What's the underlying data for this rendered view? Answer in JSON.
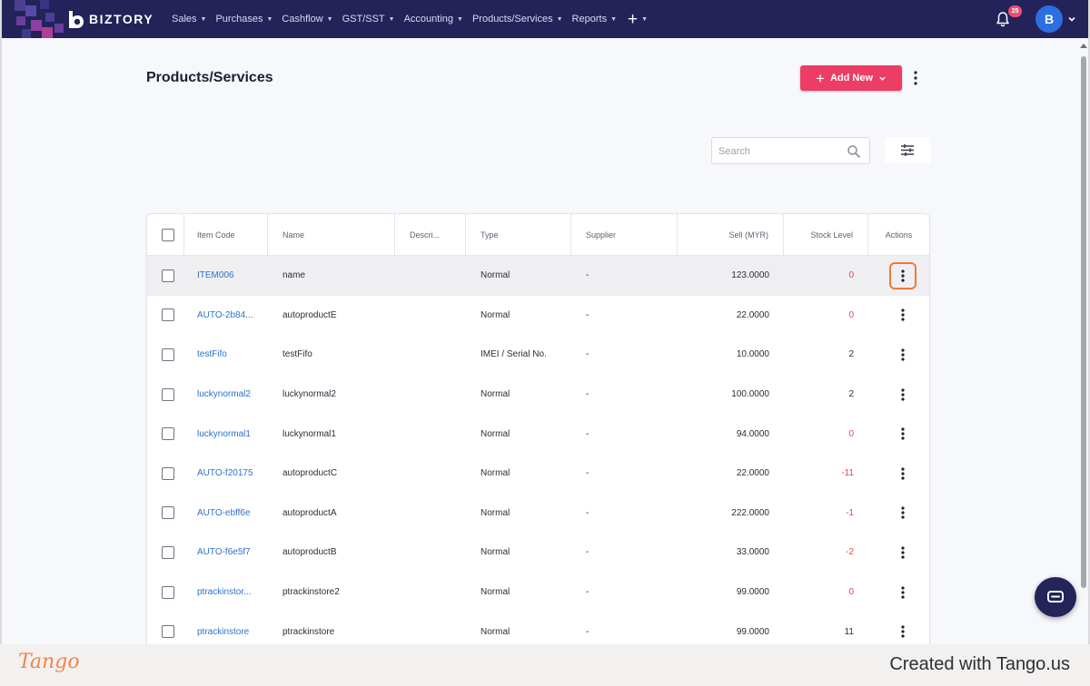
{
  "nav": {
    "brand": "BIZTORY",
    "menu": [
      {
        "label": "Sales"
      },
      {
        "label": "Purchases"
      },
      {
        "label": "Cashflow"
      },
      {
        "label": "GST/SST"
      },
      {
        "label": "Accounting"
      },
      {
        "label": "Products/Services"
      },
      {
        "label": "Reports"
      }
    ],
    "plus_symbol": "+",
    "notification_count": "25",
    "avatar_initial": "B"
  },
  "page": {
    "title": "Products/Services",
    "add_new_label": "Add New"
  },
  "search": {
    "placeholder": "Search"
  },
  "table": {
    "columns": {
      "item_code": "Item Code",
      "name": "Name",
      "description": "Descri...",
      "type": "Type",
      "supplier": "Supplier",
      "sell": "Sell (MYR)",
      "stock": "Stock Level",
      "actions": "Actions"
    },
    "rows": [
      {
        "code": "ITEM006",
        "name": "name",
        "type": "Normal",
        "supplier": "-",
        "sell": "123.0000",
        "stock": "0",
        "stock_negative_or_zero": true
      },
      {
        "code": "AUTO-2b84...",
        "name": "autoproductE",
        "type": "Normal",
        "supplier": "-",
        "sell": "22.0000",
        "stock": "0",
        "stock_negative_or_zero": true
      },
      {
        "code": "testFifo",
        "name": "testFifo",
        "type": "IMEI / Serial No.",
        "supplier": "-",
        "sell": "10.0000",
        "stock": "2",
        "stock_negative_or_zero": false
      },
      {
        "code": "luckynormal2",
        "name": "luckynormal2",
        "type": "Normal",
        "supplier": "-",
        "sell": "100.0000",
        "stock": "2",
        "stock_negative_or_zero": false
      },
      {
        "code": "luckynormal1",
        "name": "luckynormal1",
        "type": "Normal",
        "supplier": "-",
        "sell": "94.0000",
        "stock": "0",
        "stock_negative_or_zero": true
      },
      {
        "code": "AUTO-f20175",
        "name": "autoproductC",
        "type": "Normal",
        "supplier": "-",
        "sell": "22.0000",
        "stock": "-11",
        "stock_negative_or_zero": true
      },
      {
        "code": "AUTO-ebff6e",
        "name": "autoproductA",
        "type": "Normal",
        "supplier": "-",
        "sell": "222.0000",
        "stock": "-1",
        "stock_negative_or_zero": true
      },
      {
        "code": "AUTO-f6e5f7",
        "name": "autoproductB",
        "type": "Normal",
        "supplier": "-",
        "sell": "33.0000",
        "stock": "-2",
        "stock_negative_or_zero": true
      },
      {
        "code": "ptrackinstor...",
        "name": "ptrackinstore2",
        "type": "Normal",
        "supplier": "-",
        "sell": "99.0000",
        "stock": "0",
        "stock_negative_or_zero": true
      },
      {
        "code": "ptrackinstore",
        "name": "ptrackinstore",
        "type": "Normal",
        "supplier": "-",
        "sell": "99.0000",
        "stock": "11",
        "stock_negative_or_zero": false
      }
    ]
  },
  "footer": {
    "logo_text": "Tango",
    "created_text": "Created with Tango.us"
  },
  "colors": {
    "nav_bg": "#23235a",
    "accent_button": "#ec3d64",
    "link": "#2d72c9",
    "negative_stock": "#e8434d",
    "highlight_ring": "#f4773a",
    "avatar_bg": "#2b6fe0"
  },
  "icons": [
    "logo-icon",
    "bell-icon",
    "chevron-down-icon",
    "kebab-icon",
    "search-icon",
    "filter-icon",
    "chat-icon"
  ]
}
